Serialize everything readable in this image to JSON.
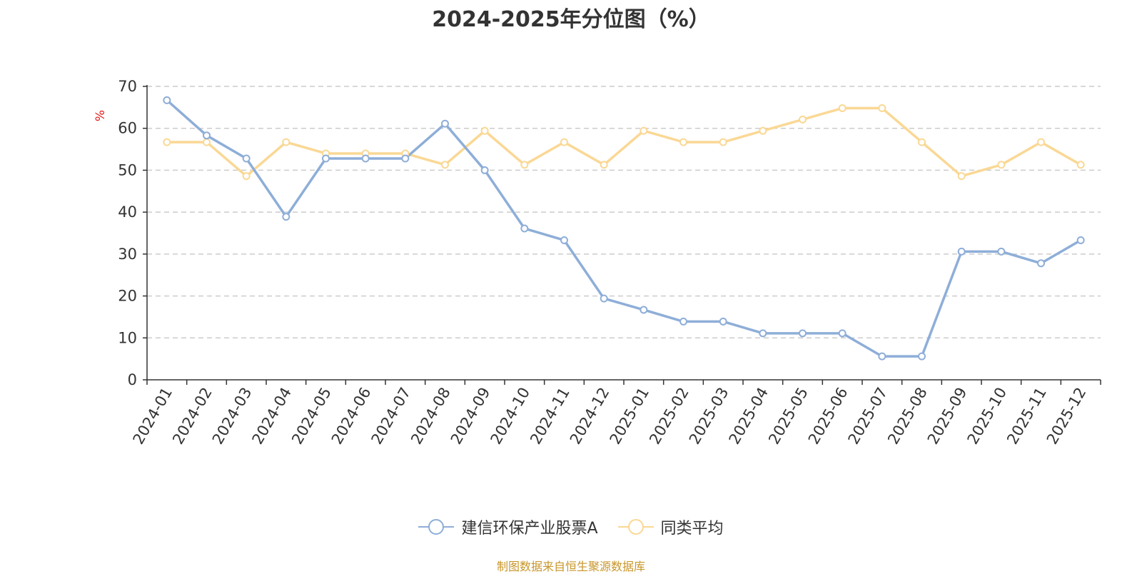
{
  "chart_data": {
    "type": "line",
    "title": "2024-2025年分位图（%）",
    "ylabel": "%",
    "xlabel": "",
    "ylim": [
      0,
      70
    ],
    "yticks": [
      0,
      10,
      20,
      30,
      40,
      50,
      60,
      70
    ],
    "grid": true,
    "legend_placement": "bottom",
    "categories": [
      "2024-01",
      "2024-02",
      "2024-03",
      "2024-04",
      "2024-05",
      "2024-06",
      "2024-07",
      "2024-08",
      "2024-09",
      "2024-10",
      "2024-11",
      "2024-12",
      "2025-01",
      "2025-02",
      "2025-03",
      "2025-04",
      "2025-05",
      "2025-06",
      "2025-07",
      "2025-08",
      "2025-09",
      "2025-10",
      "2025-11",
      "2025-12"
    ],
    "series": [
      {
        "name": "建信环保产业股票A",
        "color": "#8eaed8",
        "values": [
          66.7,
          58.3,
          52.8,
          38.9,
          52.8,
          52.8,
          52.8,
          61.1,
          50.0,
          36.1,
          33.3,
          19.4,
          16.7,
          13.9,
          13.9,
          11.1,
          11.1,
          11.1,
          5.6,
          5.6,
          30.6,
          30.6,
          27.8,
          33.3
        ]
      },
      {
        "name": "同类平均",
        "color": "#fad895",
        "values": [
          56.7,
          56.7,
          48.6,
          56.7,
          54.0,
          54.0,
          54.0,
          51.3,
          59.4,
          51.3,
          56.7,
          51.3,
          59.4,
          56.7,
          56.7,
          59.4,
          62.1,
          64.8,
          64.8,
          56.7,
          48.6,
          51.3,
          56.7,
          51.3
        ]
      }
    ]
  },
  "source_note": "制图数据来自恒生聚源数据库"
}
